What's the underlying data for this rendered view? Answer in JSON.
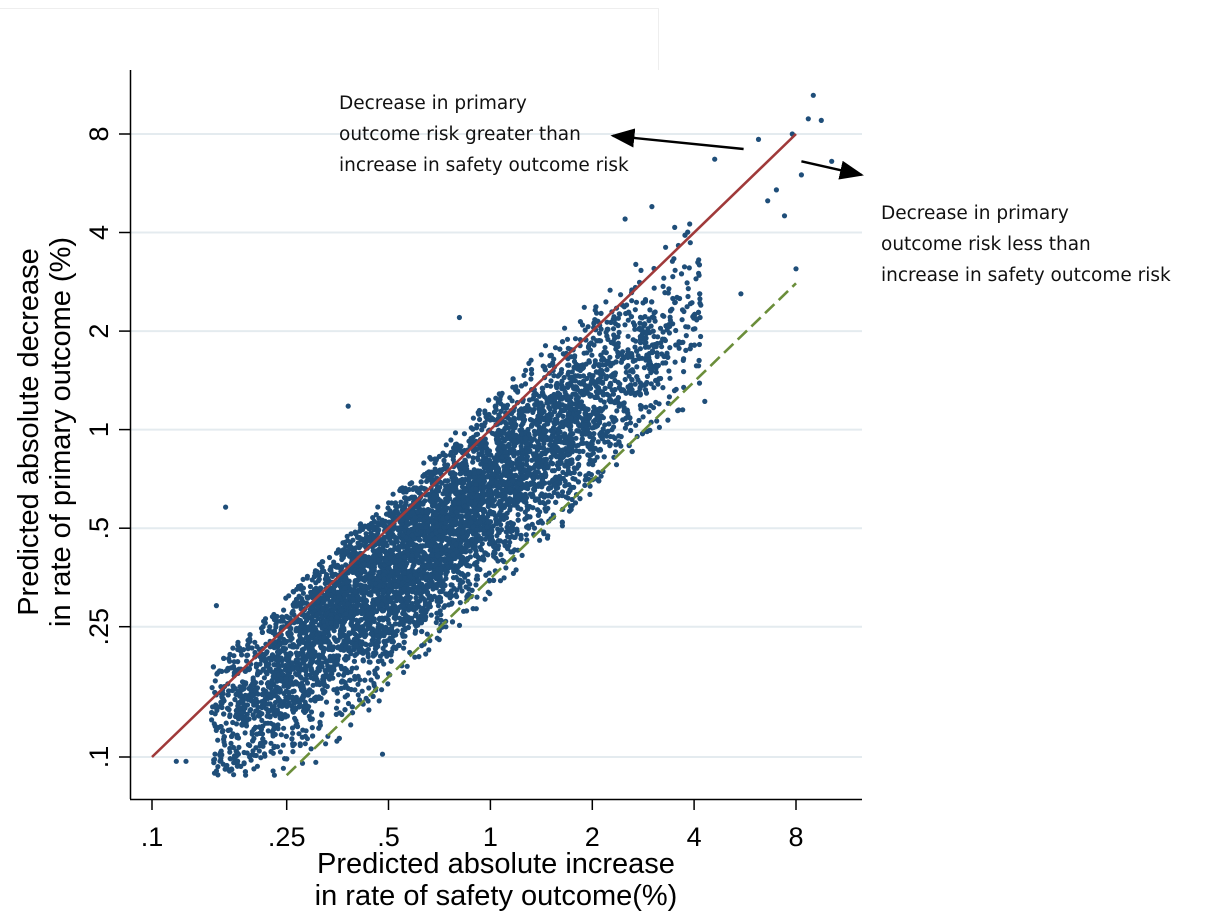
{
  "chart_data": {
    "type": "scatter",
    "x_scale": "log",
    "y_scale": "log",
    "xlabel": [
      "Predicted absolute increase",
      "in rate of safety outcome(%)"
    ],
    "ylabel": [
      "Predicted absolute decrease",
      "in rate of primary outcome (%)"
    ],
    "xlim": [
      0.088,
      10.8
    ],
    "ylim": [
      0.077,
      12.5
    ],
    "x_ticks": [
      0.1,
      0.25,
      0.5,
      1,
      2,
      4,
      8
    ],
    "x_tick_labels": [
      ".1",
      ".25",
      ".5",
      "1",
      "2",
      "4",
      "8"
    ],
    "y_ticks": [
      0.1,
      0.25,
      0.5,
      1,
      2,
      4,
      8
    ],
    "y_tick_labels": [
      ".1",
      ".25",
      ".5",
      "1",
      "2",
      "4",
      "8"
    ],
    "grid": "horizontal",
    "point_color": "#1f4e79",
    "scatter_shape": {
      "n_points": 7000,
      "median_x": 0.62,
      "median_y": 0.43,
      "sd_log_x": 0.9,
      "sd_log_y": 0.85,
      "correlation": 0.93
    },
    "outlier_points": [
      {
        "x": 9.0,
        "y": 10.5
      },
      {
        "x": 8.7,
        "y": 8.9
      },
      {
        "x": 9.5,
        "y": 8.8
      },
      {
        "x": 7.8,
        "y": 8.0
      },
      {
        "x": 6.2,
        "y": 7.7
      },
      {
        "x": 10.2,
        "y": 6.6
      },
      {
        "x": 4.6,
        "y": 6.7
      },
      {
        "x": 8.3,
        "y": 6.0
      },
      {
        "x": 7.0,
        "y": 5.4
      },
      {
        "x": 6.6,
        "y": 5.0
      },
      {
        "x": 3.0,
        "y": 4.8
      },
      {
        "x": 7.4,
        "y": 4.5
      },
      {
        "x": 2.5,
        "y": 4.4
      },
      {
        "x": 8.0,
        "y": 3.1
      },
      {
        "x": 5.5,
        "y": 2.6
      },
      {
        "x": 0.165,
        "y": 0.58
      },
      {
        "x": 0.38,
        "y": 1.18
      },
      {
        "x": 0.81,
        "y": 2.2
      },
      {
        "x": 0.155,
        "y": 0.29
      },
      {
        "x": 0.118,
        "y": 0.097
      },
      {
        "x": 0.126,
        "y": 0.097
      },
      {
        "x": 0.23,
        "y": 0.088
      },
      {
        "x": 0.48,
        "y": 0.102
      },
      {
        "x": 2.6,
        "y": 1.35
      },
      {
        "x": 3.7,
        "y": 1.15
      },
      {
        "x": 4.3,
        "y": 1.22
      }
    ],
    "reference_lines": [
      {
        "name": "equality",
        "style": "solid",
        "color": "#a03a3a",
        "x": [
          0.1,
          8
        ],
        "y": [
          0.1,
          8
        ]
      },
      {
        "name": "offset",
        "style": "dashed",
        "color": "#6b8e3a",
        "x": [
          0.25,
          8
        ],
        "y": [
          0.088,
          2.8
        ]
      }
    ],
    "annotations": [
      {
        "lines": [
          "Decrease in primary",
          "outcome risk greater than",
          "increase in safety outcome risk"
        ],
        "arrow": {
          "from": [
            5.6,
            7.2
          ],
          "to": [
            2.3,
            7.9
          ]
        }
      },
      {
        "lines": [
          "Decrease in primary",
          "outcome risk less than",
          "increase in safety outcome risk"
        ],
        "arrow": {
          "from": [
            8.3,
            6.6
          ],
          "to": [
            12.5,
            6.0
          ]
        }
      }
    ]
  }
}
